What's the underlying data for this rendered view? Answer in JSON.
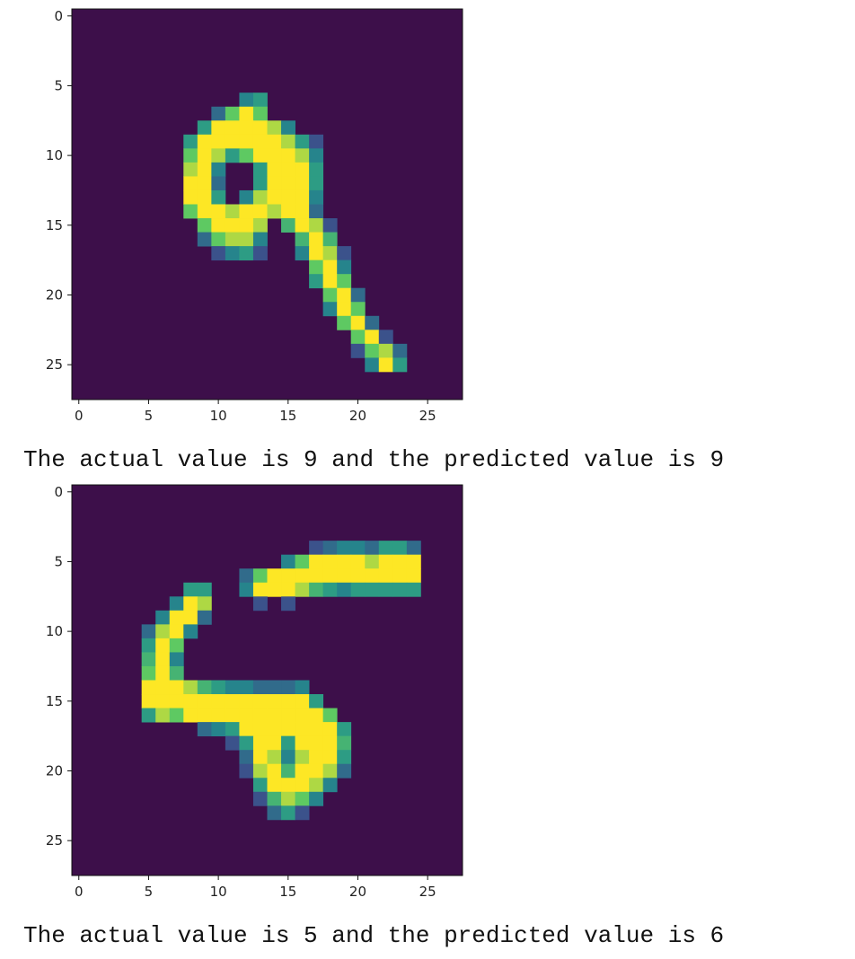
{
  "colors": {
    "background": "#3d0f4a",
    "low": "#3b528b",
    "mid": "#21918c",
    "high_mid": "#5ec962",
    "high": "#fde725"
  },
  "chart_data": [
    {
      "type": "heatmap",
      "title": "",
      "xlabel": "",
      "ylabel": "",
      "grid_size": [
        28,
        28
      ],
      "xlim": [
        -0.5,
        27.5
      ],
      "ylim": [
        27.5,
        -0.5
      ],
      "x_ticks": [
        0,
        5,
        10,
        15,
        20,
        25
      ],
      "y_ticks": [
        0,
        5,
        10,
        15,
        20,
        25
      ],
      "pixels_approx": [
        [
          6,
          12,
          0.5
        ],
        [
          6,
          13,
          0.6
        ],
        [
          7,
          10,
          0.4
        ],
        [
          7,
          11,
          0.8
        ],
        [
          7,
          12,
          1.0
        ],
        [
          7,
          13,
          0.8
        ],
        [
          8,
          9,
          0.6
        ],
        [
          8,
          10,
          1.0
        ],
        [
          8,
          11,
          1.0
        ],
        [
          8,
          12,
          1.0
        ],
        [
          8,
          13,
          1.0
        ],
        [
          8,
          14,
          0.9
        ],
        [
          8,
          15,
          0.5
        ],
        [
          9,
          8,
          0.6
        ],
        [
          9,
          9,
          1.0
        ],
        [
          9,
          10,
          1.0
        ],
        [
          9,
          11,
          1.0
        ],
        [
          9,
          12,
          1.0
        ],
        [
          9,
          13,
          1.0
        ],
        [
          9,
          14,
          1.0
        ],
        [
          9,
          15,
          0.9
        ],
        [
          9,
          16,
          0.6
        ],
        [
          9,
          17,
          0.3
        ],
        [
          10,
          8,
          0.8
        ],
        [
          10,
          9,
          1.0
        ],
        [
          10,
          10,
          0.9
        ],
        [
          10,
          11,
          0.6
        ],
        [
          10,
          12,
          0.8
        ],
        [
          10,
          13,
          1.0
        ],
        [
          10,
          14,
          1.0
        ],
        [
          10,
          15,
          1.0
        ],
        [
          10,
          16,
          0.9
        ],
        [
          10,
          17,
          0.5
        ],
        [
          11,
          8,
          0.9
        ],
        [
          11,
          9,
          1.0
        ],
        [
          11,
          10,
          0.5
        ],
        [
          11,
          13,
          0.6
        ],
        [
          11,
          14,
          1.0
        ],
        [
          11,
          15,
          1.0
        ],
        [
          11,
          16,
          1.0
        ],
        [
          11,
          17,
          0.6
        ],
        [
          12,
          8,
          1.0
        ],
        [
          12,
          9,
          1.0
        ],
        [
          12,
          10,
          0.4
        ],
        [
          12,
          13,
          0.6
        ],
        [
          12,
          14,
          1.0
        ],
        [
          12,
          15,
          1.0
        ],
        [
          12,
          16,
          1.0
        ],
        [
          12,
          17,
          0.6
        ],
        [
          13,
          8,
          1.0
        ],
        [
          13,
          9,
          1.0
        ],
        [
          13,
          10,
          0.6
        ],
        [
          13,
          12,
          0.5
        ],
        [
          13,
          13,
          0.9
        ],
        [
          13,
          14,
          1.0
        ],
        [
          13,
          15,
          1.0
        ],
        [
          13,
          16,
          1.0
        ],
        [
          13,
          17,
          0.5
        ],
        [
          14,
          8,
          0.8
        ],
        [
          14,
          9,
          1.0
        ],
        [
          14,
          10,
          1.0
        ],
        [
          14,
          11,
          0.9
        ],
        [
          14,
          12,
          1.0
        ],
        [
          14,
          13,
          1.0
        ],
        [
          14,
          14,
          0.9
        ],
        [
          14,
          15,
          1.0
        ],
        [
          14,
          16,
          1.0
        ],
        [
          14,
          17,
          0.4
        ],
        [
          15,
          9,
          0.8
        ],
        [
          15,
          10,
          1.0
        ],
        [
          15,
          11,
          1.0
        ],
        [
          15,
          12,
          1.0
        ],
        [
          15,
          13,
          0.9
        ],
        [
          15,
          15,
          0.7
        ],
        [
          15,
          16,
          1.0
        ],
        [
          15,
          17,
          0.9
        ],
        [
          15,
          18,
          0.3
        ],
        [
          16,
          9,
          0.4
        ],
        [
          16,
          10,
          0.8
        ],
        [
          16,
          11,
          0.9
        ],
        [
          16,
          12,
          0.9
        ],
        [
          16,
          13,
          0.5
        ],
        [
          16,
          16,
          0.7
        ],
        [
          16,
          17,
          1.0
        ],
        [
          16,
          18,
          0.7
        ],
        [
          17,
          10,
          0.3
        ],
        [
          17,
          11,
          0.5
        ],
        [
          17,
          12,
          0.6
        ],
        [
          17,
          13,
          0.3
        ],
        [
          17,
          16,
          0.5
        ],
        [
          17,
          17,
          1.0
        ],
        [
          17,
          18,
          0.9
        ],
        [
          17,
          19,
          0.3
        ],
        [
          18,
          17,
          0.8
        ],
        [
          18,
          18,
          1.0
        ],
        [
          18,
          19,
          0.5
        ],
        [
          19,
          17,
          0.6
        ],
        [
          19,
          18,
          1.0
        ],
        [
          19,
          19,
          0.8
        ],
        [
          20,
          18,
          0.8
        ],
        [
          20,
          19,
          1.0
        ],
        [
          20,
          20,
          0.4
        ],
        [
          21,
          18,
          0.5
        ],
        [
          21,
          19,
          1.0
        ],
        [
          21,
          20,
          0.8
        ],
        [
          22,
          19,
          0.8
        ],
        [
          22,
          20,
          1.0
        ],
        [
          22,
          21,
          0.4
        ],
        [
          23,
          20,
          0.8
        ],
        [
          23,
          21,
          1.0
        ],
        [
          23,
          22,
          0.3
        ],
        [
          24,
          20,
          0.3
        ],
        [
          24,
          21,
          0.8
        ],
        [
          24,
          22,
          0.9
        ],
        [
          24,
          23,
          0.4
        ],
        [
          25,
          21,
          0.5
        ],
        [
          25,
          22,
          1.0
        ],
        [
          25,
          23,
          0.6
        ]
      ]
    },
    {
      "type": "heatmap",
      "title": "",
      "xlabel": "",
      "ylabel": "",
      "grid_size": [
        28,
        28
      ],
      "xlim": [
        -0.5,
        27.5
      ],
      "ylim": [
        27.5,
        -0.5
      ],
      "x_ticks": [
        0,
        5,
        10,
        15,
        20,
        25
      ],
      "y_ticks": [
        0,
        5,
        10,
        15,
        20,
        25
      ],
      "pixels_approx": [
        [
          4,
          17,
          0.3
        ],
        [
          4,
          18,
          0.4
        ],
        [
          4,
          19,
          0.5
        ],
        [
          4,
          20,
          0.5
        ],
        [
          4,
          21,
          0.4
        ],
        [
          4,
          22,
          0.6
        ],
        [
          4,
          23,
          0.6
        ],
        [
          4,
          24,
          0.4
        ],
        [
          5,
          15,
          0.5
        ],
        [
          5,
          16,
          0.8
        ],
        [
          5,
          17,
          1.0
        ],
        [
          5,
          18,
          1.0
        ],
        [
          5,
          19,
          1.0
        ],
        [
          5,
          20,
          1.0
        ],
        [
          5,
          21,
          0.9
        ],
        [
          5,
          22,
          1.0
        ],
        [
          5,
          23,
          1.0
        ],
        [
          5,
          24,
          1.0
        ],
        [
          6,
          12,
          0.4
        ],
        [
          6,
          13,
          0.8
        ],
        [
          6,
          14,
          1.0
        ],
        [
          6,
          15,
          1.0
        ],
        [
          6,
          16,
          1.0
        ],
        [
          6,
          17,
          1.0
        ],
        [
          6,
          18,
          1.0
        ],
        [
          6,
          19,
          1.0
        ],
        [
          6,
          20,
          1.0
        ],
        [
          6,
          21,
          1.0
        ],
        [
          6,
          22,
          1.0
        ],
        [
          6,
          23,
          1.0
        ],
        [
          6,
          24,
          1.0
        ],
        [
          7,
          8,
          0.6
        ],
        [
          7,
          9,
          0.6
        ],
        [
          7,
          12,
          0.5
        ],
        [
          7,
          13,
          1.0
        ],
        [
          7,
          14,
          1.0
        ],
        [
          7,
          15,
          1.0
        ],
        [
          7,
          16,
          0.9
        ],
        [
          7,
          17,
          0.7
        ],
        [
          7,
          18,
          0.6
        ],
        [
          7,
          19,
          0.5
        ],
        [
          7,
          20,
          0.6
        ],
        [
          7,
          21,
          0.6
        ],
        [
          7,
          22,
          0.6
        ],
        [
          7,
          23,
          0.6
        ],
        [
          7,
          24,
          0.6
        ],
        [
          8,
          7,
          0.5
        ],
        [
          8,
          8,
          1.0
        ],
        [
          8,
          9,
          0.9
        ],
        [
          8,
          13,
          0.3
        ],
        [
          8,
          15,
          0.3
        ],
        [
          9,
          6,
          0.5
        ],
        [
          9,
          7,
          1.0
        ],
        [
          9,
          8,
          1.0
        ],
        [
          9,
          9,
          0.4
        ],
        [
          10,
          5,
          0.4
        ],
        [
          10,
          6,
          0.9
        ],
        [
          10,
          7,
          1.0
        ],
        [
          10,
          8,
          0.5
        ],
        [
          11,
          5,
          0.6
        ],
        [
          11,
          6,
          1.0
        ],
        [
          11,
          7,
          0.8
        ],
        [
          12,
          5,
          0.7
        ],
        [
          12,
          6,
          1.0
        ],
        [
          12,
          7,
          0.5
        ],
        [
          13,
          5,
          0.8
        ],
        [
          13,
          6,
          1.0
        ],
        [
          13,
          7,
          0.7
        ],
        [
          14,
          5,
          1.0
        ],
        [
          14,
          6,
          1.0
        ],
        [
          14,
          7,
          1.0
        ],
        [
          14,
          8,
          0.9
        ],
        [
          14,
          9,
          0.7
        ],
        [
          14,
          10,
          0.6
        ],
        [
          14,
          11,
          0.5
        ],
        [
          14,
          12,
          0.5
        ],
        [
          14,
          13,
          0.4
        ],
        [
          14,
          14,
          0.4
        ],
        [
          14,
          15,
          0.4
        ],
        [
          14,
          16,
          0.5
        ],
        [
          15,
          5,
          1.0
        ],
        [
          15,
          6,
          1.0
        ],
        [
          15,
          7,
          1.0
        ],
        [
          15,
          8,
          1.0
        ],
        [
          15,
          9,
          1.0
        ],
        [
          15,
          10,
          1.0
        ],
        [
          15,
          11,
          1.0
        ],
        [
          15,
          12,
          1.0
        ],
        [
          15,
          13,
          1.0
        ],
        [
          15,
          14,
          1.0
        ],
        [
          15,
          15,
          1.0
        ],
        [
          15,
          16,
          1.0
        ],
        [
          15,
          17,
          0.6
        ],
        [
          16,
          5,
          0.6
        ],
        [
          16,
          6,
          0.9
        ],
        [
          16,
          7,
          0.8
        ],
        [
          16,
          8,
          1.0
        ],
        [
          16,
          9,
          1.0
        ],
        [
          16,
          10,
          1.0
        ],
        [
          16,
          11,
          1.0
        ],
        [
          16,
          12,
          1.0
        ],
        [
          16,
          13,
          1.0
        ],
        [
          16,
          14,
          1.0
        ],
        [
          16,
          15,
          1.0
        ],
        [
          16,
          16,
          1.0
        ],
        [
          16,
          17,
          1.0
        ],
        [
          16,
          18,
          0.8
        ],
        [
          17,
          9,
          0.4
        ],
        [
          17,
          10,
          0.5
        ],
        [
          17,
          11,
          0.6
        ],
        [
          17,
          12,
          1.0
        ],
        [
          17,
          13,
          1.0
        ],
        [
          17,
          14,
          1.0
        ],
        [
          17,
          15,
          1.0
        ],
        [
          17,
          16,
          1.0
        ],
        [
          17,
          17,
          1.0
        ],
        [
          17,
          18,
          1.0
        ],
        [
          17,
          19,
          0.6
        ],
        [
          18,
          11,
          0.3
        ],
        [
          18,
          12,
          0.6
        ],
        [
          18,
          13,
          1.0
        ],
        [
          18,
          14,
          1.0
        ],
        [
          18,
          15,
          0.6
        ],
        [
          18,
          16,
          1.0
        ],
        [
          18,
          17,
          1.0
        ],
        [
          18,
          18,
          1.0
        ],
        [
          18,
          19,
          0.7
        ],
        [
          19,
          12,
          0.4
        ],
        [
          19,
          13,
          1.0
        ],
        [
          19,
          14,
          0.9
        ],
        [
          19,
          15,
          0.5
        ],
        [
          19,
          16,
          0.9
        ],
        [
          19,
          17,
          1.0
        ],
        [
          19,
          18,
          1.0
        ],
        [
          19,
          19,
          0.6
        ],
        [
          20,
          12,
          0.3
        ],
        [
          20,
          13,
          0.9
        ],
        [
          20,
          14,
          1.0
        ],
        [
          20,
          15,
          0.7
        ],
        [
          20,
          16,
          1.0
        ],
        [
          20,
          17,
          1.0
        ],
        [
          20,
          18,
          0.9
        ],
        [
          20,
          19,
          0.4
        ],
        [
          21,
          13,
          0.6
        ],
        [
          21,
          14,
          1.0
        ],
        [
          21,
          15,
          1.0
        ],
        [
          21,
          16,
          1.0
        ],
        [
          21,
          17,
          0.9
        ],
        [
          21,
          18,
          0.5
        ],
        [
          22,
          13,
          0.3
        ],
        [
          22,
          14,
          0.7
        ],
        [
          22,
          15,
          0.9
        ],
        [
          22,
          16,
          0.8
        ],
        [
          22,
          17,
          0.5
        ],
        [
          23,
          14,
          0.4
        ],
        [
          23,
          15,
          0.6
        ],
        [
          23,
          16,
          0.3
        ]
      ]
    }
  ],
  "outputs": [
    {
      "text": "The actual value is 9 and the predicted value is 9"
    },
    {
      "text": "The actual value is 5 and the predicted value is 6"
    }
  ]
}
